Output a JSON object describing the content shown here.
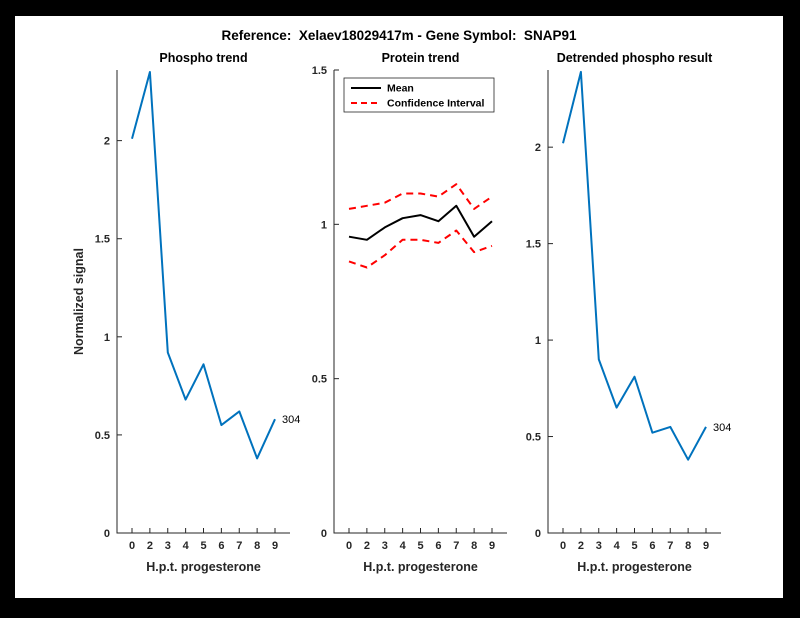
{
  "figure": {
    "title": "Reference:  Xelaev18029417m - Gene Symbol:  SNAP91",
    "background": "#FFFFFF",
    "surround": "#000000"
  },
  "colors": {
    "blue": "#0072BD",
    "red": "#FF0000",
    "black": "#000000",
    "axis": "#262626"
  },
  "chart_data": [
    {
      "type": "line",
      "title": "Phospho trend",
      "xlabel": "H.p.t. progesterone",
      "ylabel": "Normalized signal",
      "categories": [
        "0",
        "2",
        "3",
        "4",
        "5",
        "6",
        "7",
        "8",
        "9"
      ],
      "ylim": [
        0,
        2.36
      ],
      "yticks": [
        0,
        0.5,
        1,
        1.5,
        2
      ],
      "ytick_labels": [
        "0",
        "0.5",
        "1",
        "1.5",
        "2"
      ],
      "grid": false,
      "series": [
        {
          "name": "phospho-signal",
          "color": "#0072BD",
          "dash": false,
          "values": [
            2.01,
            2.35,
            0.92,
            0.68,
            0.86,
            0.55,
            0.62,
            0.38,
            0.58
          ]
        }
      ],
      "annotation": {
        "text": "304"
      }
    },
    {
      "type": "line",
      "title": "Protein trend",
      "xlabel": "H.p.t. progesterone",
      "ylabel": "",
      "categories": [
        "0",
        "2",
        "3",
        "4",
        "5",
        "6",
        "7",
        "8",
        "9"
      ],
      "ylim": [
        0,
        1.5
      ],
      "yticks": [
        0,
        0.5,
        1,
        1.5
      ],
      "ytick_labels": [
        "0",
        "0.5",
        "1",
        "1.5"
      ],
      "grid": false,
      "legend": {
        "position": "top-left",
        "entries": [
          {
            "label": "Mean",
            "color": "#000000",
            "dash": false
          },
          {
            "label": "Confidence Interval",
            "color": "#FF0000",
            "dash": true
          }
        ]
      },
      "series": [
        {
          "name": "mean",
          "color": "#000000",
          "dash": false,
          "values": [
            0.96,
            0.95,
            0.99,
            1.02,
            1.03,
            1.01,
            1.06,
            0.96,
            1.01
          ]
        },
        {
          "name": "confidence-upper",
          "color": "#FF0000",
          "dash": true,
          "values": [
            1.05,
            1.06,
            1.07,
            1.1,
            1.1,
            1.09,
            1.13,
            1.05,
            1.09
          ]
        },
        {
          "name": "confidence-lower",
          "color": "#FF0000",
          "dash": true,
          "values": [
            0.88,
            0.86,
            0.9,
            0.95,
            0.95,
            0.94,
            0.98,
            0.91,
            0.93
          ]
        }
      ]
    },
    {
      "type": "line",
      "title": "Detrended phospho result",
      "xlabel": "H.p.t. progesterone",
      "ylabel": "",
      "categories": [
        "0",
        "2",
        "3",
        "4",
        "5",
        "6",
        "7",
        "8",
        "9"
      ],
      "ylim": [
        0,
        2.4
      ],
      "yticks": [
        0,
        0.5,
        1,
        1.5,
        2
      ],
      "ytick_labels": [
        "0",
        "0.5",
        "1",
        "1.5",
        "2"
      ],
      "grid": false,
      "series": [
        {
          "name": "detrended-phospho-signal",
          "color": "#0072BD",
          "dash": false,
          "values": [
            2.02,
            2.39,
            0.9,
            0.65,
            0.81,
            0.52,
            0.55,
            0.38,
            0.55
          ]
        }
      ],
      "annotation": {
        "text": "304"
      }
    }
  ]
}
